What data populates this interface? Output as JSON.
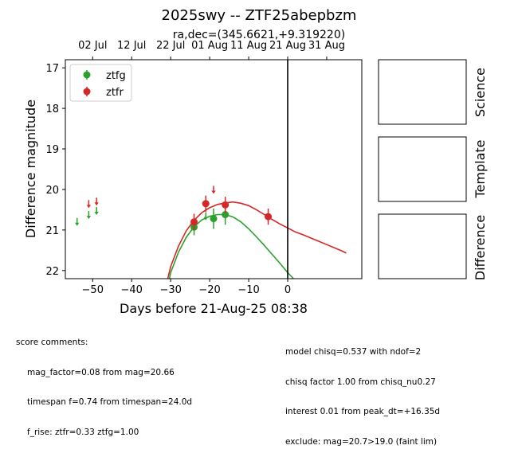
{
  "chart_data": {
    "type": "scatter",
    "title": "2025swy -- ZTF25abepbzm",
    "subtitle": "ra,dec=(345.6621,+9.319220)",
    "xlabel": "Days before 21-Aug-25 08:38",
    "ylabel": "Difference magnitude",
    "xlim": [
      -57,
      19
    ],
    "ylim": [
      22.2,
      16.8
    ],
    "y_inverted": true,
    "x_ticks": [
      -50,
      -40,
      -30,
      -20,
      -10,
      0
    ],
    "y_ticks": [
      17,
      18,
      19,
      20,
      21,
      22
    ],
    "top_axis_ticks": [
      {
        "label": "02 Jul",
        "x": -50
      },
      {
        "label": "12 Jul",
        "x": -40
      },
      {
        "label": "22 Jul",
        "x": -30
      },
      {
        "label": "01 Aug",
        "x": -20
      },
      {
        "label": "11 Aug",
        "x": -10
      },
      {
        "label": "21 Aug",
        "x": 0
      },
      {
        "label": "31 Aug",
        "x": 10
      }
    ],
    "vline_x": 0,
    "legend_position": "top-left",
    "series": [
      {
        "name": "ztfg",
        "color": "#2ca02c",
        "points": [
          {
            "x": -24.0,
            "y": 20.93,
            "err": 0.2
          },
          {
            "x": -19.0,
            "y": 20.72,
            "err": 0.25
          },
          {
            "x": -16.0,
            "y": 20.62,
            "err": 0.25
          }
        ],
        "upper_limits": [
          {
            "x": -54.0,
            "y": 20.82
          },
          {
            "x": -51.0,
            "y": 20.65
          },
          {
            "x": -49.0,
            "y": 20.55
          },
          {
            "x": -21.0,
            "y": 20.68
          }
        ],
        "model": [
          [
            -31,
            22.5
          ],
          [
            -30,
            22.05
          ],
          [
            -28,
            21.55
          ],
          [
            -26,
            21.18
          ],
          [
            -24,
            20.92
          ],
          [
            -22,
            20.75
          ],
          [
            -20,
            20.66
          ],
          [
            -18,
            20.62
          ],
          [
            -16,
            20.62
          ],
          [
            -14,
            20.68
          ],
          [
            -12,
            20.8
          ],
          [
            -10,
            20.97
          ],
          [
            -8,
            21.17
          ],
          [
            -6,
            21.38
          ],
          [
            -4,
            21.6
          ],
          [
            -2,
            21.82
          ],
          [
            0,
            22.05
          ],
          [
            1,
            22.15
          ],
          [
            2.5,
            22.3
          ]
        ]
      },
      {
        "name": "ztfr",
        "color": "#d62728",
        "points": [
          {
            "x": -24.0,
            "y": 20.8,
            "err": 0.2
          },
          {
            "x": -21.0,
            "y": 20.35,
            "err": 0.2
          },
          {
            "x": -16.0,
            "y": 20.38,
            "err": 0.2
          },
          {
            "x": -5.0,
            "y": 20.67,
            "err": 0.2
          }
        ],
        "upper_limits": [
          {
            "x": -51.0,
            "y": 20.38
          },
          {
            "x": -49.0,
            "y": 20.32
          },
          {
            "x": -19.0,
            "y": 20.03
          }
        ],
        "model": [
          [
            -31,
            22.3
          ],
          [
            -30,
            21.9
          ],
          [
            -28,
            21.4
          ],
          [
            -26,
            21.02
          ],
          [
            -24,
            20.76
          ],
          [
            -22,
            20.57
          ],
          [
            -20,
            20.45
          ],
          [
            -18,
            20.37
          ],
          [
            -16,
            20.33
          ],
          [
            -14,
            20.31
          ],
          [
            -12,
            20.34
          ],
          [
            -10,
            20.4
          ],
          [
            -8,
            20.5
          ],
          [
            -6,
            20.62
          ],
          [
            -4,
            20.74
          ],
          [
            -2,
            20.85
          ],
          [
            0,
            20.95
          ],
          [
            2,
            21.05
          ],
          [
            4,
            21.12
          ],
          [
            6,
            21.2
          ],
          [
            8,
            21.28
          ],
          [
            10,
            21.36
          ],
          [
            12,
            21.44
          ],
          [
            14,
            21.52
          ],
          [
            15,
            21.57
          ]
        ]
      }
    ]
  },
  "side_panels": {
    "science_label": "Science",
    "template_label": "Template",
    "difference_label": "Difference"
  },
  "score_comments": {
    "header": "score comments:",
    "left_lines": [
      "mag_factor=0.08 from mag=20.66",
      "timespan f=0.74 from timespan=24.0d",
      "f_rise: ztfr=0.33 ztfg=1.00"
    ],
    "right_lines": [
      "model chisq=0.537 with ndof=2",
      "chisq factor 1.00 from chisq_nu0.27",
      "interest 0.01 from peak_dt=+16.35d",
      "exclude: mag=20.7>19.0 (faint lim)"
    ]
  }
}
